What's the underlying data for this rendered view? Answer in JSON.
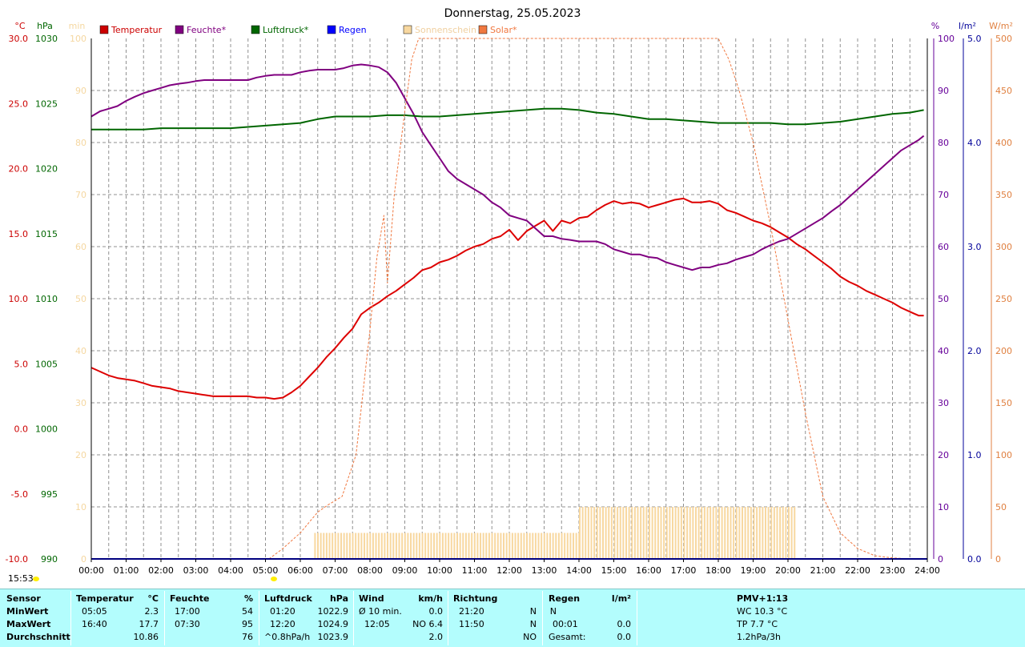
{
  "chart_data": {
    "type": "line",
    "title": "Donnerstag, 25.05.2023",
    "x_ticks": [
      "00:00",
      "01:00",
      "02:00",
      "03:00",
      "04:00",
      "05:00",
      "06:00",
      "07:00",
      "08:00",
      "09:00",
      "10:00",
      "11:00",
      "12:00",
      "13:00",
      "14:00",
      "15:00",
      "16:00",
      "17:00",
      "18:00",
      "19:00",
      "20:00",
      "21:00",
      "22:00",
      "23:00",
      "24:00"
    ],
    "x_range_hours": [
      0,
      24
    ],
    "grid": true,
    "legend_position": "top",
    "axes": {
      "temperature": {
        "unit": "°C",
        "range": [
          -10,
          30
        ],
        "ticks": [
          "30.0",
          "25.0",
          "20.0",
          "15.0",
          "10.0",
          "5.0",
          "0.0",
          "-5.0",
          "-10.0"
        ],
        "color": "#cc0000"
      },
      "pressure": {
        "unit": "hPa",
        "range": [
          990,
          1030
        ],
        "ticks": [
          "1030",
          "1025",
          "1020",
          "1015",
          "1010",
          "1005",
          "1000",
          "995",
          "990"
        ],
        "color": "#006600"
      },
      "sunshine": {
        "unit": "min",
        "range": [
          0,
          100
        ],
        "ticks": [
          "100",
          "90",
          "80",
          "70",
          "60",
          "50",
          "40",
          "30",
          "20",
          "10",
          "0"
        ],
        "color": "#f5d7a0"
      },
      "humidity": {
        "unit": "%",
        "range": [
          0,
          100
        ],
        "ticks": [
          "100",
          "90",
          "80",
          "70",
          "60",
          "50",
          "40",
          "30",
          "20",
          "10",
          "0"
        ],
        "color": "#660099"
      },
      "rain": {
        "unit": "l/m²",
        "range": [
          0,
          5
        ],
        "ticks": [
          "5.0",
          "4.0",
          "3.0",
          "2.0",
          "1.0",
          "0.0"
        ],
        "color": "#000099"
      },
      "solar": {
        "unit": "W/m²",
        "range": [
          0,
          500
        ],
        "ticks": [
          "500",
          "450",
          "400",
          "350",
          "300",
          "250",
          "200",
          "150",
          "100",
          "50",
          "0"
        ],
        "color": "#e08040"
      }
    },
    "legend": [
      {
        "label": "Temperatur",
        "color": "#cc0000"
      },
      {
        "label": "Feuchte*",
        "color": "#800080"
      },
      {
        "label": "Luftdruck*",
        "color": "#006600"
      },
      {
        "label": "Regen",
        "color": "#0000ff"
      },
      {
        "label": "Sonnenschein",
        "color": "#f8d8a0"
      },
      {
        "label": "Solar*",
        "color": "#f07840"
      }
    ],
    "series": [
      {
        "key": "temperature",
        "axis": "temperature",
        "color": "#dd0000",
        "width": 2,
        "x": [
          0,
          0.25,
          0.5,
          0.75,
          1,
          1.25,
          1.5,
          1.75,
          2,
          2.25,
          2.5,
          2.75,
          3,
          3.25,
          3.5,
          3.75,
          4,
          4.25,
          4.5,
          4.75,
          5,
          5.25,
          5.5,
          5.75,
          6,
          6.25,
          6.5,
          6.75,
          7,
          7.25,
          7.5,
          7.75,
          8,
          8.25,
          8.5,
          8.75,
          9,
          9.25,
          9.5,
          9.75,
          10,
          10.25,
          10.5,
          10.75,
          11,
          11.25,
          11.5,
          11.75,
          12,
          12.25,
          12.5,
          12.75,
          13,
          13.25,
          13.5,
          13.75,
          14,
          14.25,
          14.5,
          14.75,
          15,
          15.25,
          15.5,
          15.75,
          16,
          16.25,
          16.5,
          16.75,
          17,
          17.25,
          17.5,
          17.75,
          18,
          18.25,
          18.5,
          18.75,
          19,
          19.25,
          19.5,
          19.75,
          20,
          20.25,
          20.5,
          20.75,
          21,
          21.25,
          21.5,
          21.75,
          22,
          22.25,
          22.5,
          22.75,
          23,
          23.25,
          23.5,
          23.75,
          23.9
        ],
        "y": [
          4.7,
          4.4,
          4.1,
          3.9,
          3.8,
          3.7,
          3.5,
          3.3,
          3.2,
          3.1,
          2.9,
          2.8,
          2.7,
          2.6,
          2.5,
          2.5,
          2.5,
          2.5,
          2.5,
          2.4,
          2.4,
          2.3,
          2.4,
          2.8,
          3.3,
          4.0,
          4.7,
          5.5,
          6.2,
          7.0,
          7.7,
          8.8,
          9.3,
          9.7,
          10.2,
          10.6,
          11.1,
          11.6,
          12.2,
          12.4,
          12.8,
          13.0,
          13.3,
          13.7,
          14.0,
          14.2,
          14.6,
          14.8,
          15.3,
          14.5,
          15.2,
          15.6,
          16.0,
          15.2,
          16.0,
          15.8,
          16.2,
          16.3,
          16.8,
          17.2,
          17.5,
          17.3,
          17.4,
          17.3,
          17.0,
          17.2,
          17.4,
          17.6,
          17.7,
          17.4,
          17.4,
          17.5,
          17.3,
          16.8,
          16.6,
          16.3,
          16.0,
          15.8,
          15.5,
          15.1,
          14.7,
          14.2,
          13.8,
          13.3,
          12.8,
          12.3,
          11.7,
          11.3,
          11.0,
          10.6,
          10.3,
          10.0,
          9.7,
          9.3,
          9.0,
          8.7,
          8.7
        ]
      },
      {
        "key": "humidity",
        "axis": "humidity",
        "color": "#800080",
        "width": 2,
        "x": [
          0,
          0.25,
          0.5,
          0.75,
          1,
          1.25,
          1.5,
          1.75,
          2,
          2.25,
          2.5,
          2.75,
          3,
          3.25,
          3.5,
          3.75,
          4,
          4.25,
          4.5,
          4.75,
          5,
          5.25,
          5.5,
          5.75,
          6,
          6.25,
          6.5,
          6.75,
          7,
          7.25,
          7.5,
          7.75,
          8,
          8.25,
          8.5,
          8.75,
          9,
          9.25,
          9.5,
          9.75,
          10,
          10.25,
          10.5,
          10.75,
          11,
          11.25,
          11.5,
          11.75,
          12,
          12.25,
          12.5,
          12.75,
          13,
          13.25,
          13.5,
          13.75,
          14,
          14.25,
          14.5,
          14.75,
          15,
          15.25,
          15.5,
          15.75,
          16,
          16.25,
          16.5,
          16.75,
          17,
          17.25,
          17.5,
          17.75,
          18,
          18.25,
          18.5,
          18.75,
          19,
          19.25,
          19.5,
          19.75,
          20,
          20.25,
          20.5,
          20.75,
          21,
          21.25,
          21.5,
          21.75,
          22,
          22.25,
          22.5,
          22.75,
          23,
          23.25,
          23.5,
          23.75,
          23.9
        ],
        "y": [
          85.0,
          86.0,
          86.5,
          87.0,
          88.0,
          88.8,
          89.5,
          90.0,
          90.5,
          91.0,
          91.3,
          91.5,
          91.8,
          92.0,
          92.0,
          92.0,
          92.0,
          92.0,
          92.0,
          92.5,
          92.8,
          93.0,
          93.0,
          93.0,
          93.5,
          93.8,
          94.0,
          94.0,
          94.0,
          94.3,
          94.8,
          95.0,
          94.8,
          94.5,
          93.5,
          91.5,
          88.5,
          85.5,
          82.0,
          79.5,
          77.0,
          74.5,
          73.0,
          72.0,
          71.0,
          70.0,
          68.5,
          67.5,
          66.0,
          65.5,
          65.0,
          63.5,
          62.0,
          62.0,
          61.5,
          61.3,
          61.0,
          61.0,
          61.0,
          60.5,
          59.5,
          59.0,
          58.5,
          58.5,
          58.0,
          57.8,
          57.0,
          56.5,
          56.0,
          55.5,
          56.0,
          56.0,
          56.5,
          56.8,
          57.5,
          58.0,
          58.5,
          59.5,
          60.3,
          61.0,
          61.5,
          62.5,
          63.5,
          64.5,
          65.5,
          66.8,
          68.0,
          69.5,
          71.0,
          72.5,
          74.0,
          75.5,
          77.0,
          78.5,
          79.5,
          80.5,
          81.3
        ]
      },
      {
        "key": "pressure",
        "axis": "pressure",
        "color": "#006600",
        "width": 2,
        "x": [
          0,
          0.5,
          1,
          1.5,
          2,
          2.5,
          3,
          3.5,
          4,
          4.5,
          5,
          5.5,
          6,
          6.5,
          7,
          7.5,
          8,
          8.5,
          9,
          9.5,
          10,
          10.5,
          11,
          11.5,
          12,
          12.5,
          13,
          13.5,
          14,
          14.5,
          15,
          15.5,
          16,
          16.5,
          17,
          17.5,
          18,
          18.5,
          19,
          19.5,
          20,
          20.5,
          21,
          21.5,
          22,
          22.5,
          23,
          23.5,
          23.9
        ],
        "y": [
          1023.0,
          1023.0,
          1023.0,
          1023.0,
          1023.1,
          1023.1,
          1023.1,
          1023.1,
          1023.1,
          1023.2,
          1023.3,
          1023.4,
          1023.5,
          1023.8,
          1024.0,
          1024.0,
          1024.0,
          1024.1,
          1024.1,
          1024.0,
          1024.0,
          1024.1,
          1024.2,
          1024.3,
          1024.4,
          1024.5,
          1024.6,
          1024.6,
          1024.5,
          1024.3,
          1024.2,
          1024.0,
          1023.8,
          1023.8,
          1023.7,
          1023.6,
          1023.5,
          1023.5,
          1023.5,
          1023.5,
          1023.4,
          1023.4,
          1023.5,
          1023.6,
          1023.8,
          1024.0,
          1024.2,
          1024.3,
          1024.5
        ]
      },
      {
        "key": "solar",
        "axis": "solar",
        "color": "#f07840",
        "width": 1,
        "dashed": true,
        "x": [
          5.1,
          5.5,
          6,
          6.5,
          6.8,
          7.2,
          7.6,
          8,
          8.2,
          8.4,
          8.5,
          8.7,
          9,
          9.2,
          9.4,
          9.6,
          9.8,
          10,
          18,
          18.3,
          18.6,
          19,
          19.5,
          20,
          20.5,
          21,
          21.5,
          22,
          22.5,
          23,
          23.5
        ],
        "y": [
          0,
          10,
          25,
          45,
          52,
          60,
          100,
          220,
          290,
          330,
          265,
          350,
          430,
          480,
          500,
          500,
          500,
          500,
          500,
          480,
          450,
          400,
          320,
          230,
          140,
          60,
          25,
          10,
          3,
          1,
          0
        ]
      },
      {
        "key": "rain",
        "axis": "rain",
        "color": "#0000ff",
        "width": 2,
        "x": [
          0,
          24
        ],
        "y": [
          0,
          0
        ]
      }
    ],
    "sunshine_bars": {
      "axis": "sunshine",
      "color": "#f8d8a0",
      "segments": [
        {
          "from": 6.4,
          "to": 14.0,
          "value": 5
        },
        {
          "from": 14.0,
          "to": 20.2,
          "value": 10
        }
      ]
    }
  },
  "ui": {
    "time_label": "15:53"
  },
  "stats": {
    "headers": {
      "sensor": "Sensor",
      "temperature": "Temperatur",
      "temperature_unit": "°C",
      "humidity": "Feuchte",
      "humidity_unit": "%",
      "pressure": "Luftdruck",
      "pressure_unit": "hPa",
      "wind": "Wind",
      "wind_unit": "km/h",
      "direction": "Richtung",
      "rain": "Regen",
      "rain_unit": "l/m²",
      "pmv": "PMV+1:13"
    },
    "rows": [
      {
        "label": "MinWert",
        "temp_time": "05:05",
        "temp_val": "2.3",
        "hum_time": "17:00",
        "hum_val": "54",
        "press_time": "01:20",
        "press_val": "1022.9",
        "wind_label": "Ø 10 min.",
        "wind_val": "0.0",
        "dir_time": "21:20",
        "dir_val": "N",
        "rain_time": "",
        "rain_label": "N",
        "rain_val": "",
        "extra": "WC 10.3 °C"
      },
      {
        "label": "MaxWert",
        "temp_time": "16:40",
        "temp_val": "17.7",
        "hum_time": "07:30",
        "hum_val": "95",
        "press_time": "12:20",
        "press_val": "1024.9",
        "wind_label": "12:05",
        "wind_val": "NO 6.4",
        "dir_time": "11:50",
        "dir_val": "N",
        "rain_time": "00:01",
        "rain_label": "",
        "rain_val": "0.0",
        "extra": "TP 7.7 °C"
      },
      {
        "label": "Durchschnitt",
        "temp_time": "",
        "temp_val": "10.86",
        "hum_time": "",
        "hum_val": "76",
        "press_time": "^0.8hPa/h",
        "press_val": "1023.9",
        "wind_label": "",
        "wind_val": "2.0",
        "dir_time": "",
        "dir_val": "NO",
        "rain_time": "Gesamt:",
        "rain_label": "",
        "rain_val": "0.0",
        "extra": "1.2hPa/3h"
      }
    ]
  }
}
